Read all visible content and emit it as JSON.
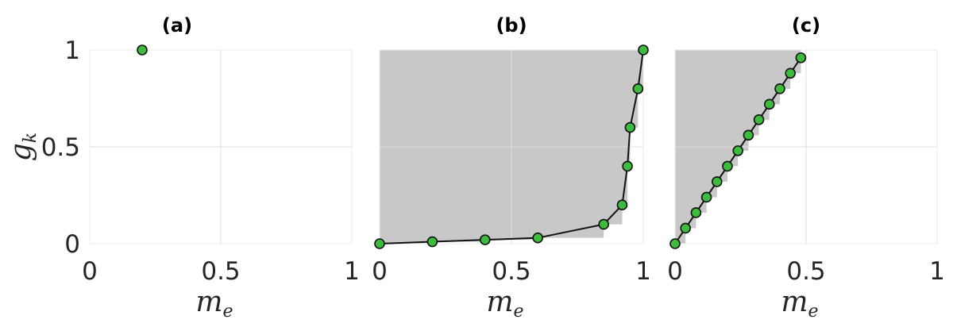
{
  "chart_data": [
    {
      "type": "scatter",
      "title": "(a)",
      "xlabel": "m_e",
      "ylabel": "g_k",
      "xlim": [
        0,
        1
      ],
      "ylim": [
        0,
        1
      ],
      "xticks": [
        "0",
        "0.5",
        "1"
      ],
      "yticks": [
        "0",
        "0.5",
        "1"
      ],
      "grid": true,
      "shaded_region": false,
      "marker_color": "#3dbb3d",
      "points": [
        {
          "x": 0.2,
          "y": 1.0
        }
      ]
    },
    {
      "type": "line",
      "title": "(b)",
      "xlabel": "m_e",
      "ylabel": "",
      "xlim": [
        0,
        1
      ],
      "ylim": [
        0,
        1
      ],
      "xticks": [
        "0",
        "0.5",
        "1"
      ],
      "yticks": [],
      "grid": true,
      "shaded_region": true,
      "shade_color": "#c8c8c8",
      "marker_color": "#3dbb3d",
      "points": [
        {
          "x": 0.0,
          "y": 0.0
        },
        {
          "x": 0.2,
          "y": 0.01
        },
        {
          "x": 0.4,
          "y": 0.02
        },
        {
          "x": 0.6,
          "y": 0.03
        },
        {
          "x": 0.85,
          "y": 0.1
        },
        {
          "x": 0.92,
          "y": 0.2
        },
        {
          "x": 0.94,
          "y": 0.4
        },
        {
          "x": 0.95,
          "y": 0.6
        },
        {
          "x": 0.98,
          "y": 0.8
        },
        {
          "x": 1.0,
          "y": 1.0
        }
      ]
    },
    {
      "type": "line",
      "title": "(c)",
      "xlabel": "m_e",
      "ylabel": "",
      "xlim": [
        0,
        1
      ],
      "ylim": [
        0,
        1
      ],
      "xticks": [
        "0",
        "0.5",
        "1"
      ],
      "yticks": [],
      "grid": true,
      "shaded_region": true,
      "shade_color": "#c8c8c8",
      "marker_color": "#3dbb3d",
      "points": [
        {
          "x": 0.0,
          "y": 0.0
        },
        {
          "x": 0.04,
          "y": 0.08
        },
        {
          "x": 0.08,
          "y": 0.16
        },
        {
          "x": 0.12,
          "y": 0.24
        },
        {
          "x": 0.16,
          "y": 0.32
        },
        {
          "x": 0.2,
          "y": 0.4
        },
        {
          "x": 0.24,
          "y": 0.48
        },
        {
          "x": 0.28,
          "y": 0.56
        },
        {
          "x": 0.32,
          "y": 0.64
        },
        {
          "x": 0.36,
          "y": 0.72
        },
        {
          "x": 0.4,
          "y": 0.8
        },
        {
          "x": 0.44,
          "y": 0.88
        },
        {
          "x": 0.48,
          "y": 0.96
        }
      ]
    }
  ]
}
